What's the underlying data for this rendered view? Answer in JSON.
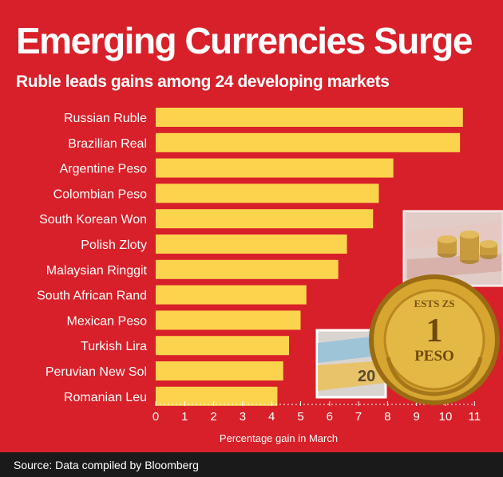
{
  "title": "Emerging Currencies Surge",
  "subtitle": "Ruble leads gains among 24 developing markets",
  "source": "Source: Data compiled by Bloomberg",
  "colors": {
    "background": "#d7202a",
    "bar": "#fcd34d",
    "footer": "#1a1a1a",
    "text": "#ffffff"
  },
  "chart_data": {
    "type": "bar",
    "orientation": "horizontal",
    "categories": [
      "Russian Ruble",
      "Brazilian Real",
      "Argentine Peso",
      "Colombian Peso",
      "South Korean Won",
      "Polish Zloty",
      "Malaysian Ringgit",
      "South African Rand",
      "Mexican Peso",
      "Turkish Lira",
      "Peruvian New Sol",
      "Romanian Leu"
    ],
    "values": [
      10.6,
      10.5,
      8.2,
      7.7,
      7.5,
      6.6,
      6.3,
      5.2,
      5.0,
      4.6,
      4.4,
      4.2
    ],
    "xlabel": "Percentage gain in March",
    "ylabel": "",
    "xlim": [
      0,
      11
    ],
    "xticks": [
      "0",
      "1",
      "2",
      "3",
      "4",
      "5",
      "6",
      "7",
      "8",
      "9",
      "10",
      "11"
    ],
    "grid": false,
    "legend": "none"
  }
}
